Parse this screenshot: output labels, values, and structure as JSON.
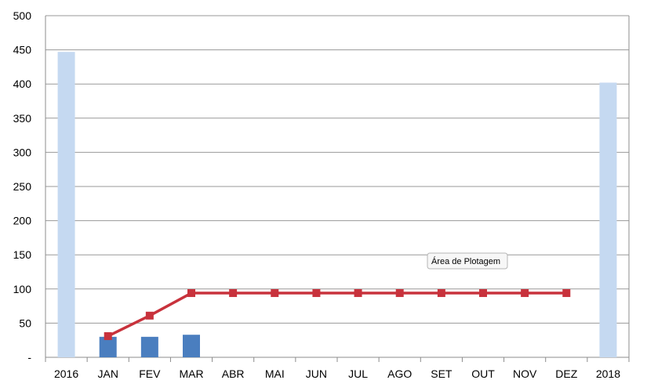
{
  "chart_data": {
    "type": "bar",
    "categories": [
      "2016",
      "JAN",
      "FEV",
      "MAR",
      "ABR",
      "MAI",
      "JUN",
      "JUL",
      "AGO",
      "SET",
      "OUT",
      "NOV",
      "DEZ",
      "2018"
    ],
    "y_ticks": [
      "-",
      "50",
      "100",
      "150",
      "200",
      "250",
      "300",
      "350",
      "400",
      "450",
      "500"
    ],
    "ylim": [
      0,
      500
    ],
    "grid": true,
    "series": [
      {
        "type": "bar",
        "values": [
          447,
          30,
          30,
          33,
          null,
          null,
          null,
          null,
          null,
          null,
          null,
          null,
          null,
          402
        ],
        "colors": [
          "#c5d9f1",
          "#4a7ebf",
          "#4a7ebf",
          "#4a7ebf",
          null,
          null,
          null,
          null,
          null,
          null,
          null,
          null,
          null,
          "#c5d9f1"
        ]
      },
      {
        "type": "line",
        "values": [
          null,
          31,
          61,
          94,
          94,
          94,
          94,
          94,
          94,
          94,
          94,
          94,
          94,
          null
        ],
        "color": "#c8323c"
      }
    ],
    "tooltip": "Área de Plotagem"
  }
}
